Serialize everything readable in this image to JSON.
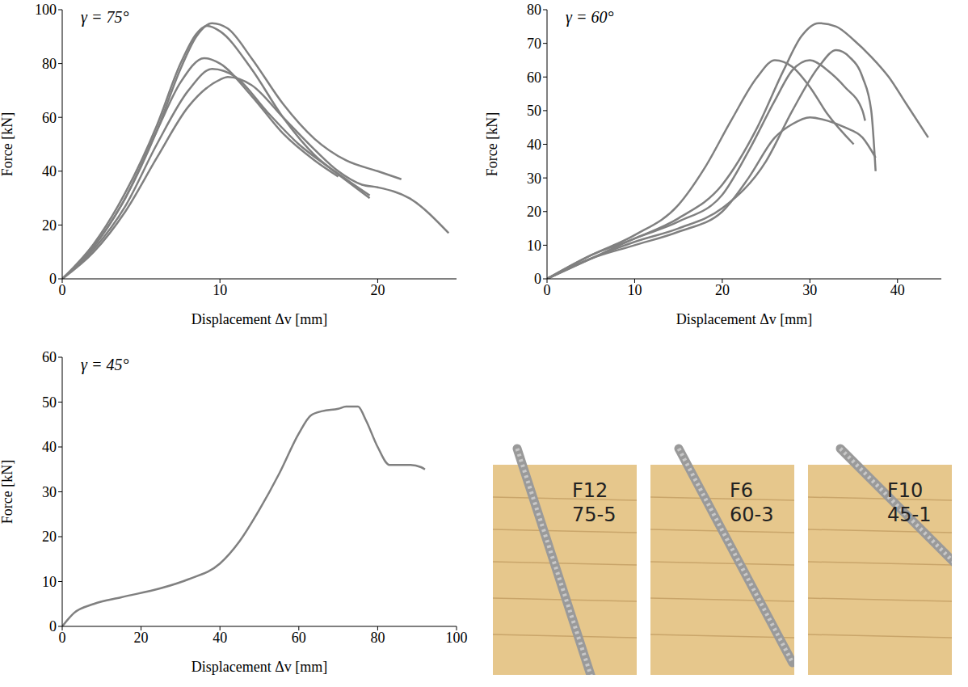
{
  "chart_data": [
    {
      "type": "line",
      "annotation": "γ = 75°",
      "x_label": "Displacement Δv [mm]",
      "y_label": "Force [kN]",
      "xlim": [
        0,
        25
      ],
      "xticks": [
        0,
        10,
        20
      ],
      "ylim": [
        0,
        100
      ],
      "yticks": [
        0,
        20,
        40,
        60,
        80,
        100
      ],
      "series": [
        {
          "color": "#808080",
          "x": [
            0,
            2,
            4,
            6,
            7.5,
            8.5,
            9.5,
            10.5,
            12,
            14,
            16,
            18,
            20,
            21.5
          ],
          "values": [
            0,
            12,
            30,
            55,
            78,
            90,
            95,
            93,
            82,
            65,
            52,
            44,
            40,
            37
          ]
        },
        {
          "color": "#808080",
          "x": [
            0,
            2,
            4,
            6,
            7.5,
            8.5,
            9.2,
            10,
            12,
            14,
            16,
            18,
            19.5
          ],
          "values": [
            0,
            13,
            32,
            57,
            80,
            91,
            94,
            92,
            78,
            60,
            46,
            37,
            31
          ]
        },
        {
          "color": "#808080",
          "x": [
            0,
            2,
            4,
            6,
            7.5,
            9,
            10,
            12,
            14,
            16,
            17.5
          ],
          "values": [
            0,
            12,
            30,
            55,
            73,
            82,
            80,
            68,
            54,
            44,
            38
          ]
        },
        {
          "color": "#808080",
          "x": [
            0,
            2,
            4,
            6,
            8,
            9.5,
            11,
            13,
            15,
            17,
            19.5
          ],
          "values": [
            0,
            11,
            27,
            50,
            70,
            78,
            75,
            62,
            50,
            41,
            30
          ]
        },
        {
          "color": "#808080",
          "x": [
            0,
            2,
            4,
            6,
            8,
            10,
            10.5,
            12,
            14,
            16,
            17.5,
            19,
            20,
            22,
            24.5
          ],
          "values": [
            0,
            10,
            25,
            45,
            64,
            74,
            75,
            72,
            60,
            48,
            40,
            35,
            34,
            30,
            17
          ]
        }
      ]
    },
    {
      "type": "line",
      "annotation": "γ = 60°",
      "x_label": "Displacement Δv [mm]",
      "y_label": "Force [kN]",
      "xlim": [
        0,
        45
      ],
      "xticks": [
        0,
        10,
        20,
        30,
        40
      ],
      "ylim": [
        0,
        80
      ],
      "yticks": [
        0,
        10,
        20,
        30,
        40,
        50,
        60,
        70,
        80
      ],
      "series": [
        {
          "color": "#808080",
          "x": [
            0,
            5,
            10,
            15,
            20,
            24,
            27,
            29,
            31,
            33,
            35,
            37,
            39,
            41,
            43.5
          ],
          "values": [
            0,
            7,
            12,
            18,
            28,
            45,
            62,
            72,
            76,
            75,
            71,
            66,
            60,
            52,
            42
          ]
        },
        {
          "color": "#808080",
          "x": [
            0,
            5,
            10,
            15,
            20,
            25,
            28,
            31,
            33,
            34.5,
            36,
            37,
            37.5
          ],
          "values": [
            0,
            6,
            11,
            15,
            21,
            35,
            50,
            63,
            68,
            66,
            60,
            50,
            32
          ]
        },
        {
          "color": "#808080",
          "x": [
            0,
            5,
            10,
            15,
            18,
            21,
            24,
            26,
            28,
            30,
            32,
            35
          ],
          "values": [
            0,
            7,
            13,
            22,
            33,
            47,
            60,
            65,
            63,
            57,
            49,
            40
          ]
        },
        {
          "color": "#808080",
          "x": [
            0,
            5,
            10,
            15,
            20,
            23,
            26,
            28,
            30,
            32,
            34,
            36,
            36.3
          ],
          "values": [
            0,
            6,
            12,
            17,
            25,
            38,
            53,
            62,
            65,
            62,
            57,
            50,
            47
          ]
        },
        {
          "color": "#808080",
          "x": [
            0,
            5,
            10,
            15,
            20,
            23,
            26,
            28,
            30,
            32,
            34,
            36,
            37.5
          ],
          "values": [
            0,
            6,
            10,
            14,
            20,
            30,
            42,
            46,
            48,
            47,
            45,
            42,
            36
          ]
        }
      ]
    },
    {
      "type": "line",
      "annotation": "γ = 45°",
      "x_label": "Displacement Δv [mm]",
      "y_label": "Force [kN]",
      "xlim": [
        0,
        100
      ],
      "xticks": [
        0,
        20,
        40,
        60,
        80,
        100
      ],
      "ylim": [
        0,
        60
      ],
      "yticks": [
        0,
        10,
        20,
        30,
        40,
        50,
        60
      ],
      "series": [
        {
          "color": "#808080",
          "x": [
            0,
            3,
            8,
            15,
            25,
            32,
            40,
            45,
            50,
            55,
            60,
            63,
            66,
            70,
            72,
            75,
            77,
            80,
            83,
            88,
            91,
            92
          ],
          "values": [
            0,
            3,
            5,
            6.5,
            8.5,
            10.5,
            14,
            19,
            26,
            34,
            43,
            47,
            48,
            48.5,
            49,
            49,
            46,
            40,
            36,
            36,
            35.5,
            35
          ]
        }
      ]
    }
  ],
  "photos": [
    {
      "label_lines": [
        "F12",
        "75-5"
      ]
    },
    {
      "label_lines": [
        "F6",
        "60-3"
      ]
    },
    {
      "label_lines": [
        "F10",
        "45-1"
      ]
    }
  ]
}
